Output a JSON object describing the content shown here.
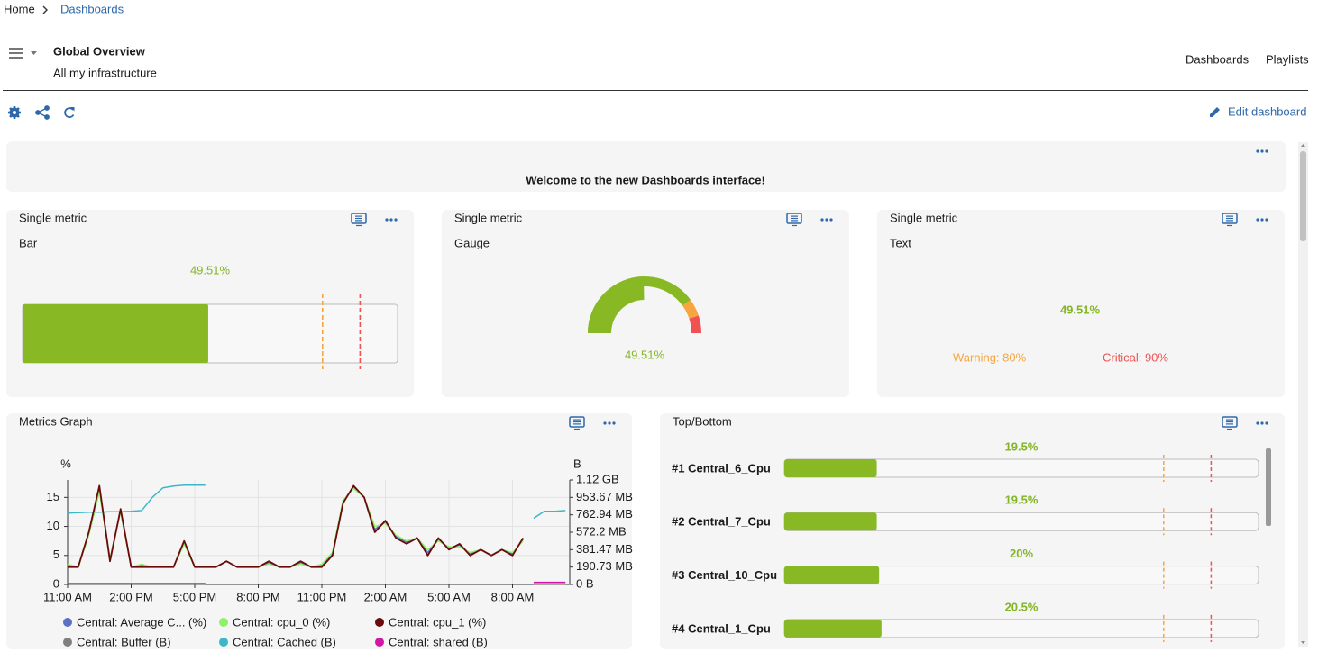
{
  "breadcrumb": {
    "home": "Home",
    "current": "Dashboards"
  },
  "header": {
    "title": "Global Overview",
    "subtitle": "All my infrastructure",
    "nav": [
      "Dashboards",
      "Playlists"
    ]
  },
  "toolbar": {
    "edit": "Edit dashboard"
  },
  "welcome": {
    "text": "Welcome to the new Dashboards interface!"
  },
  "single_metrics": [
    {
      "title": "Single metric",
      "kind": "Bar",
      "value": 49.51,
      "value_label": "49.51%",
      "xlim": [
        0,
        100
      ],
      "warning": 80,
      "critical": 90
    },
    {
      "title": "Single metric",
      "kind": "Gauge",
      "value": 49.51,
      "value_label": "49.51%",
      "xlim": [
        0,
        100
      ],
      "warning": 80,
      "critical": 90
    },
    {
      "title": "Single metric",
      "kind": "Text",
      "value_label": "49.51%",
      "warning_label": "Warning: 80%",
      "critical_label": "Critical: 90%"
    }
  ],
  "chart_data": {
    "type": "line",
    "title": "Metrics Graph",
    "ylabel": "%",
    "y2label": "B",
    "categories": [
      "11:00 AM",
      null,
      null,
      null,
      null,
      null,
      "2:00 PM",
      null,
      null,
      null,
      null,
      null,
      "5:00 PM",
      null,
      null,
      null,
      null,
      null,
      "8:00 PM",
      null,
      null,
      null,
      null,
      null,
      "11:00 PM",
      null,
      null,
      null,
      null,
      null,
      "2:00 AM",
      null,
      null,
      null,
      null,
      null,
      "5:00 AM",
      null,
      null,
      null,
      null,
      null,
      "8:00 AM",
      null,
      null,
      null,
      null,
      null
    ],
    "ylim": [
      0,
      18
    ],
    "yticks": [
      0,
      5,
      10,
      15
    ],
    "y2lim": [
      0,
      1200000000
    ],
    "y2ticks": [
      {
        "value": 0,
        "label": "0 B"
      },
      {
        "value": 200000000,
        "label": "190.73 MB"
      },
      {
        "value": 400000000,
        "label": "381.47 MB"
      },
      {
        "value": 600000000,
        "label": "572.2 MB"
      },
      {
        "value": 800000000,
        "label": "762.94 MB"
      },
      {
        "value": 1000000000,
        "label": "953.67 MB"
      },
      {
        "value": 1200000000,
        "label": "1.12 GB"
      }
    ],
    "grid": true,
    "series": [
      {
        "name": "Central: Average C... (%)",
        "color": "#5b6fc5",
        "values": [
          3.3,
          3,
          8.8,
          16.5,
          4.3,
          12.8,
          3,
          3.3,
          3,
          3,
          3,
          7.3,
          3,
          3,
          3,
          4,
          3,
          3,
          3,
          3.8,
          3,
          3,
          3.8,
          3,
          3.3,
          5.3,
          14.3,
          16.8,
          15,
          9.5,
          10.8,
          8.3,
          7.3,
          8,
          5.5,
          7.8,
          6.3,
          6.8,
          5.3,
          6,
          5,
          6,
          5.3,
          7.8,
          null,
          null,
          null,
          null
        ]
      },
      {
        "name": "Central: cpu_0 (%)",
        "color": "#8df266",
        "values": [
          3.5,
          3,
          8.5,
          16,
          4.5,
          12.5,
          3,
          3.5,
          3,
          3,
          3,
          7,
          3,
          3,
          3,
          4,
          3,
          3,
          3,
          3.5,
          3,
          3,
          3.5,
          3,
          3.5,
          5.5,
          14.5,
          16.5,
          15,
          10,
          10.5,
          8.5,
          7.5,
          8,
          6,
          7.5,
          6.5,
          6.5,
          5.5,
          6,
          5,
          6,
          5.5,
          7.5,
          null,
          null,
          null,
          null
        ]
      },
      {
        "name": "Central: cpu_1 (%)",
        "color": "#6a0a0a",
        "values": [
          3,
          3,
          9,
          17,
          4,
          13,
          3,
          3,
          3,
          3,
          3,
          7.5,
          3,
          3,
          3,
          4,
          3,
          3,
          3,
          4,
          3,
          3,
          4,
          3,
          3,
          5,
          14,
          17,
          15,
          9,
          11,
          8,
          7,
          8,
          5,
          8,
          6,
          7,
          5,
          6,
          5,
          6,
          5,
          8,
          null,
          null,
          null,
          null
        ]
      },
      {
        "name": "Central: Buffer (B)",
        "color": "#808080",
        "axis": "y2",
        "values": [
          5000000,
          5000000,
          5000000,
          5000000,
          5000000,
          5000000,
          5000000,
          5000000,
          5000000,
          5000000,
          5000000,
          5000000,
          5000000,
          5000000,
          null,
          null,
          null,
          null,
          null,
          null,
          null,
          null,
          null,
          null,
          null,
          null,
          null,
          null,
          null,
          null,
          null,
          null,
          null,
          null,
          null,
          null,
          null,
          null,
          null,
          null,
          null,
          null,
          null,
          null,
          5000000,
          5000000,
          5000000,
          5000000
        ]
      },
      {
        "name": "Central: Cached (B)",
        "color": "#3eb6c9",
        "axis": "y2",
        "values": [
          820000000,
          825000000,
          830000000,
          830000000,
          835000000,
          835000000,
          840000000,
          850000000,
          1000000000,
          1110000000,
          1130000000,
          1140000000,
          1140000000,
          1140000000,
          null,
          null,
          null,
          null,
          null,
          null,
          null,
          null,
          null,
          null,
          null,
          null,
          null,
          null,
          null,
          null,
          null,
          null,
          null,
          null,
          null,
          null,
          null,
          null,
          null,
          null,
          null,
          null,
          null,
          null,
          760000000,
          840000000,
          840000000,
          850000000
        ]
      },
      {
        "name": "Central: shared (B)",
        "color": "#d315a8",
        "axis": "y2",
        "values": [
          10000000,
          10000000,
          10000000,
          10000000,
          10000000,
          10000000,
          10000000,
          10000000,
          10000000,
          10000000,
          10000000,
          10000000,
          10000000,
          10000000,
          null,
          null,
          null,
          null,
          null,
          null,
          null,
          null,
          null,
          null,
          null,
          null,
          null,
          null,
          null,
          null,
          null,
          null,
          null,
          null,
          null,
          null,
          null,
          null,
          null,
          null,
          null,
          null,
          null,
          null,
          25000000,
          25000000,
          25000000,
          25000000
        ]
      }
    ]
  },
  "top_bottom": {
    "title": "Top/Bottom",
    "xlim": [
      0,
      100
    ],
    "warning": 80,
    "critical": 90,
    "items": [
      {
        "label": "#1 Central_6_Cpu",
        "value": 19.5,
        "value_label": "19.5%"
      },
      {
        "label": "#2 Central_7_Cpu",
        "value": 19.5,
        "value_label": "19.5%"
      },
      {
        "label": "#3 Central_10_Cpu",
        "value": 20,
        "value_label": "20%"
      },
      {
        "label": "#4 Central_1_Cpu",
        "value": 20.5,
        "value_label": "20.5%"
      }
    ]
  }
}
